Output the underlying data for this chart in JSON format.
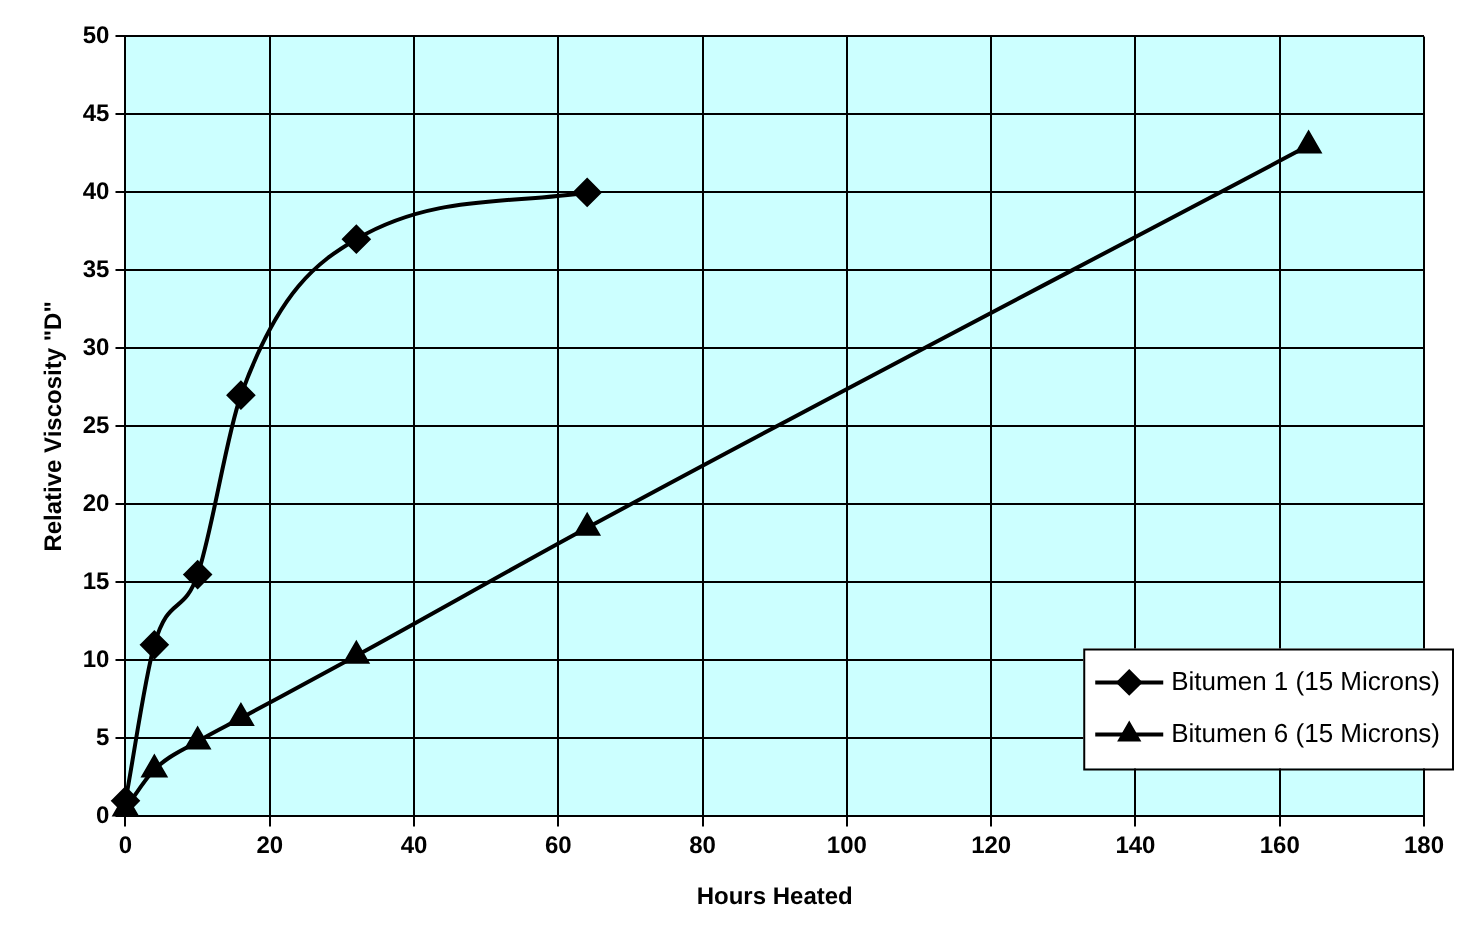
{
  "chart_data": {
    "type": "line",
    "xlabel": "Hours Heated",
    "ylabel": "Relative Viscosity \"D\"",
    "xlim": [
      0,
      180
    ],
    "xticks": [
      0,
      20,
      40,
      60,
      80,
      100,
      120,
      140,
      160,
      180
    ],
    "ylim": [
      0,
      50
    ],
    "yticks": [
      0,
      5,
      10,
      15,
      20,
      25,
      30,
      35,
      40,
      45,
      50
    ],
    "grid": true,
    "legend": "bottom right",
    "line_style": "solid",
    "series": [
      {
        "name": "Bitumen 1 (15 Microns)",
        "color": "#000000",
        "marker": "diamond",
        "x": [
          0,
          4,
          10,
          16,
          32,
          64
        ],
        "values": [
          1,
          11,
          15.5,
          27,
          37,
          40
        ]
      },
      {
        "name": "Bitumen 6 (15 Microns)",
        "color": "#000000",
        "marker": "triangle",
        "x": [
          0,
          4,
          10,
          16,
          32,
          64,
          164
        ],
        "values": [
          0.5,
          3,
          4.8,
          6.3,
          10.3,
          18.5,
          43
        ]
      }
    ]
  }
}
